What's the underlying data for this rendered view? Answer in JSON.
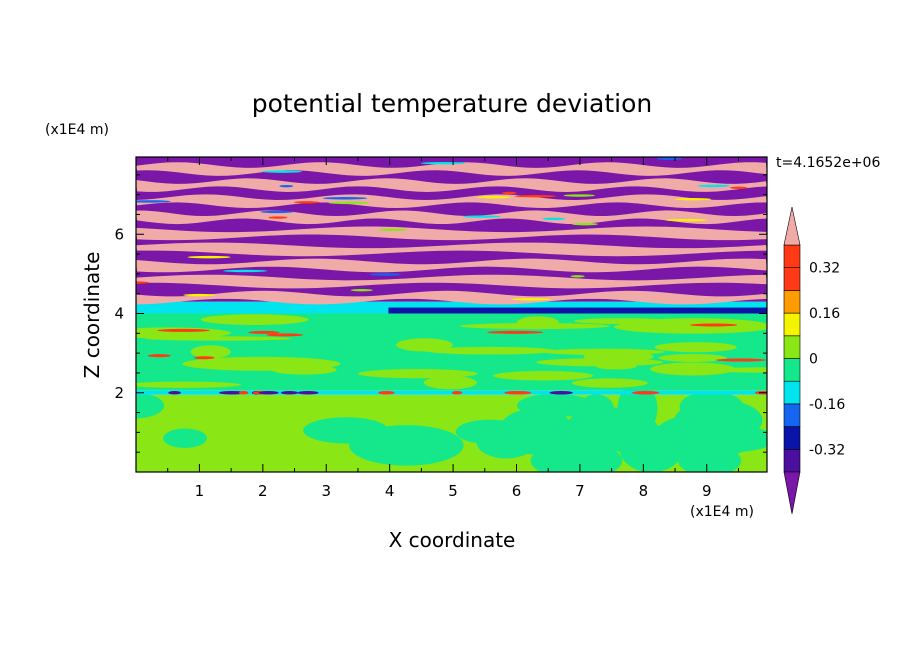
{
  "chart_data": {
    "type": "heatmap",
    "title": "potential temperature deviation",
    "xlabel": "X coordinate",
    "ylabel": "Z coordinate",
    "x_unit": "(x1E4 m)",
    "y_unit": "(x1E4 m)",
    "time_label": "t=4.1652e+06",
    "xlim": [
      0,
      9.95
    ],
    "ylim": [
      0,
      7.95
    ],
    "x_ticks": [
      1,
      2,
      3,
      4,
      5,
      6,
      7,
      8,
      9
    ],
    "y_ticks": [
      2,
      4,
      6
    ],
    "colorbar": {
      "levels": [
        -0.4,
        -0.32,
        -0.24,
        -0.16,
        -0.08,
        0,
        0.08,
        0.16,
        0.24,
        0.32,
        0.4
      ],
      "labels": [
        "0.32",
        "0.16",
        "0",
        "-0.16",
        "-0.32"
      ],
      "label_values": [
        0.32,
        0.16,
        0,
        -0.16,
        -0.32
      ],
      "colors": [
        "#7a16a8",
        "#4b0fa0",
        "#0a14a8",
        "#1466f0",
        "#00e4ee",
        "#14e88a",
        "#8ae614",
        "#f4f400",
        "#ff9c00",
        "#ff3a14",
        "#f0aaa8"
      ],
      "extend": "both"
    },
    "regions": [
      {
        "z_from": 0,
        "z_to": 1.95,
        "pattern": "mix of 0 to +0.08 and -0.08 to 0"
      },
      {
        "z_from": 1.95,
        "z_to": 2.05,
        "pattern": "thin band with -0.4 and +0.32 streaks"
      },
      {
        "z_from": 2.05,
        "z_to": 4.0,
        "pattern": "mostly -0.08 to 0 with +0.08 streaks"
      },
      {
        "z_from": 4.0,
        "z_to": 4.3,
        "pattern": "-0.16 to -0.24 band"
      },
      {
        "z_from": 4.3,
        "z_to": 7.95,
        "pattern": "alternating layers of < -0.4 and > 0.4"
      }
    ]
  }
}
